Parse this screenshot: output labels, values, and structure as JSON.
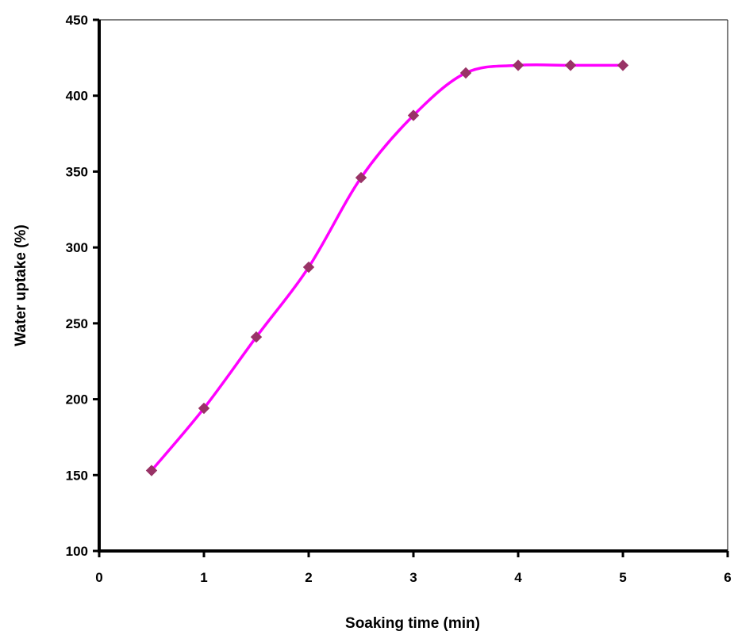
{
  "chart_data": {
    "type": "line",
    "title": "",
    "xlabel": "Soaking time (min)",
    "ylabel": "Water uptake (%)",
    "xlim": [
      0,
      6
    ],
    "ylim": [
      100,
      450
    ],
    "x_ticks": [
      0,
      1,
      2,
      3,
      4,
      5,
      6
    ],
    "y_ticks": [
      100,
      150,
      200,
      250,
      300,
      350,
      400,
      450
    ],
    "grid": false,
    "legend": "none",
    "series": [
      {
        "line_color": "#ff00ff",
        "marker_color": "#993366",
        "marker": "diamond",
        "smooth": true,
        "x": [
          0.5,
          1,
          1.5,
          2,
          2.5,
          3,
          3.5,
          4,
          4.5,
          5
        ],
        "y": [
          153,
          194,
          241,
          287,
          346,
          387,
          415,
          420,
          420,
          420
        ]
      }
    ]
  }
}
